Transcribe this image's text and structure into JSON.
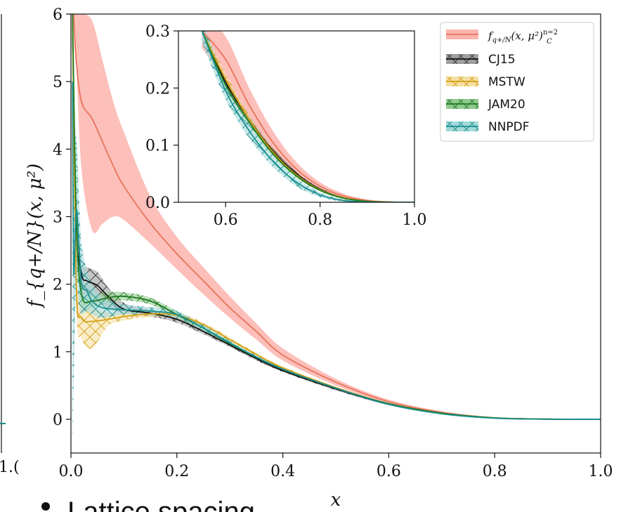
{
  "chart_data": {
    "type": "line",
    "xlabel": "x",
    "ylabel": "f_{q+/N}(x, μ²)",
    "xlim": [
      0.0,
      1.0
    ],
    "ylim": [
      -0.5,
      6.0
    ],
    "xticks": [
      "0.0",
      "0.2",
      "0.4",
      "0.6",
      "0.8",
      "1.0"
    ],
    "yticks": [
      "0",
      "1",
      "2",
      "3",
      "4",
      "5",
      "6"
    ],
    "legend_position": "top-right",
    "series": [
      {
        "name": "f_{q+/N}(x, μ²)_C^{n=2}",
        "color": "#e8735a",
        "band_color": "#fbb4ae",
        "hatch": "none",
        "x": [
          0.005,
          0.01,
          0.02,
          0.04,
          0.06,
          0.08,
          0.1,
          0.15,
          0.2,
          0.25,
          0.3,
          0.35,
          0.4,
          0.5,
          0.6,
          0.7,
          0.8,
          0.9,
          1.0
        ],
        "y": [
          6.0,
          5.3,
          4.7,
          4.45,
          4.1,
          3.75,
          3.45,
          2.9,
          2.45,
          2.05,
          1.65,
          1.3,
          0.95,
          0.55,
          0.26,
          0.1,
          0.02,
          0.003,
          0.0
        ],
        "lower": [
          6.0,
          5.3,
          3.7,
          2.8,
          2.9,
          3.0,
          2.95,
          2.6,
          2.22,
          1.85,
          1.5,
          1.18,
          0.87,
          0.5,
          0.23,
          0.08,
          0.015,
          0.002,
          0.0
        ],
        "upper": [
          6.0,
          6.0,
          6.0,
          5.9,
          5.3,
          4.7,
          4.25,
          3.3,
          2.7,
          2.25,
          1.82,
          1.42,
          1.05,
          0.6,
          0.29,
          0.12,
          0.03,
          0.005,
          0.0
        ]
      },
      {
        "name": "CJ15",
        "color": "#111111",
        "band_color": "#9e9e9e",
        "hatch": "x",
        "x": [
          0.003,
          0.01,
          0.02,
          0.03,
          0.05,
          0.07,
          0.1,
          0.15,
          0.2,
          0.25,
          0.3,
          0.35,
          0.4,
          0.5,
          0.6,
          0.7,
          0.8,
          0.9,
          1.0
        ],
        "y": [
          5.8,
          2.9,
          2.15,
          2.05,
          1.98,
          1.82,
          1.63,
          1.57,
          1.48,
          1.3,
          1.1,
          0.9,
          0.72,
          0.45,
          0.22,
          0.09,
          0.02,
          0.002,
          0.0
        ],
        "lower": [
          5.5,
          2.5,
          1.9,
          1.85,
          1.78,
          1.65,
          1.57,
          1.52,
          1.43,
          1.26,
          1.07,
          0.87,
          0.7,
          0.43,
          0.21,
          0.08,
          0.018,
          0.0015,
          0.0
        ],
        "upper": [
          6.0,
          3.2,
          2.35,
          2.25,
          2.18,
          1.95,
          1.72,
          1.62,
          1.53,
          1.34,
          1.13,
          0.93,
          0.74,
          0.47,
          0.23,
          0.1,
          0.022,
          0.0025,
          0.0
        ]
      },
      {
        "name": "MSTW",
        "color": "#d4a017",
        "band_color": "#f5dfa3",
        "hatch": "x",
        "x": [
          0.003,
          0.01,
          0.02,
          0.04,
          0.07,
          0.1,
          0.15,
          0.2,
          0.25,
          0.3,
          0.35,
          0.4,
          0.5,
          0.6,
          0.7,
          0.8,
          0.9,
          1.0
        ],
        "y": [
          5.9,
          2.0,
          1.5,
          1.45,
          1.48,
          1.52,
          1.56,
          1.54,
          1.4,
          1.18,
          0.96,
          0.76,
          0.47,
          0.23,
          0.09,
          0.02,
          0.002,
          0.0
        ],
        "lower": [
          5.5,
          1.7,
          1.2,
          1.05,
          1.38,
          1.46,
          1.52,
          1.5,
          1.37,
          1.15,
          0.94,
          0.74,
          0.46,
          0.22,
          0.085,
          0.018,
          0.0015,
          0.0
        ],
        "upper": [
          6.0,
          2.3,
          1.85,
          1.65,
          1.58,
          1.58,
          1.6,
          1.58,
          1.43,
          1.21,
          0.98,
          0.78,
          0.48,
          0.24,
          0.095,
          0.022,
          0.0025,
          0.0
        ]
      },
      {
        "name": "JAM20",
        "color": "#1e7a1e",
        "band_color": "#8fc98f",
        "hatch": "x",
        "x": [
          0.003,
          0.01,
          0.02,
          0.04,
          0.07,
          0.1,
          0.15,
          0.2,
          0.25,
          0.3,
          0.35,
          0.4,
          0.5,
          0.6,
          0.7,
          0.8,
          0.9,
          1.0
        ],
        "y": [
          6.0,
          3.0,
          1.85,
          1.75,
          1.8,
          1.82,
          1.75,
          1.55,
          1.35,
          1.12,
          0.92,
          0.74,
          0.46,
          0.23,
          0.09,
          0.02,
          0.002,
          0.0
        ],
        "lower": [
          5.7,
          2.7,
          1.7,
          1.65,
          1.72,
          1.76,
          1.7,
          1.5,
          1.31,
          1.09,
          0.9,
          0.72,
          0.45,
          0.22,
          0.085,
          0.018,
          0.0015,
          0.0
        ],
        "upper": [
          6.0,
          3.3,
          2.0,
          1.85,
          1.88,
          1.88,
          1.8,
          1.6,
          1.39,
          1.15,
          0.94,
          0.76,
          0.47,
          0.24,
          0.095,
          0.022,
          0.0025,
          0.0
        ]
      },
      {
        "name": "NNPDF",
        "color": "#1a8f8f",
        "band_color": "#a3d9d9",
        "hatch": "x",
        "x": [
          0.003,
          0.005,
          0.01,
          0.015,
          0.02,
          0.03,
          0.04,
          0.06,
          0.1,
          0.15,
          0.2,
          0.25,
          0.3,
          0.35,
          0.4,
          0.5,
          0.6,
          0.7,
          0.8,
          0.9,
          1.0
        ],
        "y": [
          5.0,
          2.2,
          3.1,
          2.6,
          2.0,
          1.9,
          1.75,
          1.65,
          1.62,
          1.6,
          1.55,
          1.35,
          1.13,
          0.92,
          0.74,
          0.46,
          0.22,
          0.08,
          0.015,
          0.001,
          0.0
        ],
        "lower": [
          -0.5,
          0.5,
          2.0,
          1.7,
          1.55,
          1.6,
          1.55,
          1.5,
          1.55,
          1.54,
          1.5,
          1.31,
          1.1,
          0.9,
          0.72,
          0.45,
          0.21,
          0.075,
          0.012,
          0.0008,
          0.0
        ],
        "upper": [
          6.0,
          4.0,
          4.2,
          3.3,
          2.6,
          2.2,
          2.0,
          1.8,
          1.7,
          1.66,
          1.6,
          1.39,
          1.16,
          0.94,
          0.76,
          0.47,
          0.23,
          0.085,
          0.018,
          0.0012,
          0.0
        ]
      }
    ],
    "inset": {
      "xlim": [
        0.5,
        1.0
      ],
      "ylim": [
        0.0,
        0.3
      ],
      "xticks": [
        "0.6",
        "0.8",
        "1.0"
      ],
      "yticks": [
        "0.0",
        "0.1",
        "0.2",
        "0.3"
      ],
      "series": [
        {
          "name": "f_{q+/N}(x, μ²)_C^{n=2}",
          "x": [
            0.55,
            0.6,
            0.65,
            0.7,
            0.75,
            0.8,
            0.85,
            0.9,
            0.95,
            1.0
          ],
          "y": [
            0.3,
            0.25,
            0.17,
            0.105,
            0.058,
            0.028,
            0.011,
            0.003,
            0.0005,
            0.0
          ],
          "lower": [
            0.27,
            0.21,
            0.14,
            0.085,
            0.045,
            0.02,
            0.007,
            0.002,
            0.0003,
            0.0
          ],
          "upper": [
            0.33,
            0.29,
            0.2,
            0.125,
            0.07,
            0.035,
            0.015,
            0.005,
            0.001,
            0.0
          ]
        },
        {
          "name": "CJ15",
          "x": [
            0.55,
            0.6,
            0.65,
            0.7,
            0.75,
            0.8,
            0.85,
            0.9,
            0.95,
            1.0
          ],
          "y": [
            0.3,
            0.21,
            0.145,
            0.09,
            0.05,
            0.023,
            0.008,
            0.002,
            0.0003,
            0.0
          ],
          "lower": [
            0.29,
            0.2,
            0.138,
            0.085,
            0.047,
            0.021,
            0.007,
            0.0015,
            0.0002,
            0.0
          ],
          "upper": [
            0.31,
            0.22,
            0.152,
            0.095,
            0.053,
            0.025,
            0.009,
            0.0025,
            0.0004,
            0.0
          ]
        },
        {
          "name": "MSTW",
          "x": [
            0.55,
            0.6,
            0.65,
            0.7,
            0.75,
            0.8,
            0.85,
            0.9,
            0.95,
            1.0
          ],
          "y": [
            0.3,
            0.215,
            0.145,
            0.088,
            0.048,
            0.022,
            0.008,
            0.002,
            0.0003,
            0.0
          ],
          "lower": [
            0.29,
            0.205,
            0.138,
            0.083,
            0.045,
            0.02,
            0.007,
            0.0015,
            0.0002,
            0.0
          ],
          "upper": [
            0.31,
            0.225,
            0.152,
            0.093,
            0.051,
            0.024,
            0.009,
            0.0025,
            0.0004,
            0.0
          ]
        },
        {
          "name": "JAM20",
          "x": [
            0.55,
            0.6,
            0.65,
            0.7,
            0.75,
            0.8,
            0.85,
            0.9,
            0.95,
            1.0
          ],
          "y": [
            0.3,
            0.205,
            0.14,
            0.085,
            0.046,
            0.021,
            0.007,
            0.0015,
            0.0002,
            0.0
          ],
          "lower": [
            0.29,
            0.198,
            0.134,
            0.081,
            0.043,
            0.019,
            0.006,
            0.001,
            0.0001,
            0.0
          ],
          "upper": [
            0.31,
            0.212,
            0.146,
            0.089,
            0.049,
            0.023,
            0.008,
            0.002,
            0.0003,
            0.0
          ]
        },
        {
          "name": "NNPDF",
          "x": [
            0.55,
            0.6,
            0.65,
            0.7,
            0.75,
            0.8,
            0.85,
            0.9,
            0.95,
            1.0
          ],
          "y": [
            0.3,
            0.195,
            0.125,
            0.072,
            0.035,
            0.013,
            0.003,
            0.0005,
            0.0,
            0.0
          ],
          "lower": [
            0.28,
            0.18,
            0.112,
            0.062,
            0.028,
            0.009,
            0.001,
            0.0,
            0.0,
            0.0
          ],
          "upper": [
            0.32,
            0.21,
            0.138,
            0.082,
            0.042,
            0.017,
            0.005,
            0.001,
            0.0,
            0.0
          ]
        }
      ]
    }
  },
  "legend": {
    "entries": [
      {
        "label": "f",
        "math_sub": "q+/N",
        "math_rest": "(x, μ²)",
        "math_sub2": "C",
        "math_sup": "n=2"
      },
      {
        "label": "CJ15"
      },
      {
        "label": "MSTW"
      },
      {
        "label": "JAM20"
      },
      {
        "label": "NNPDF"
      }
    ]
  },
  "fragments": {
    "bottom_text": "Lattice spacing",
    "left_tick": "1.("
  }
}
